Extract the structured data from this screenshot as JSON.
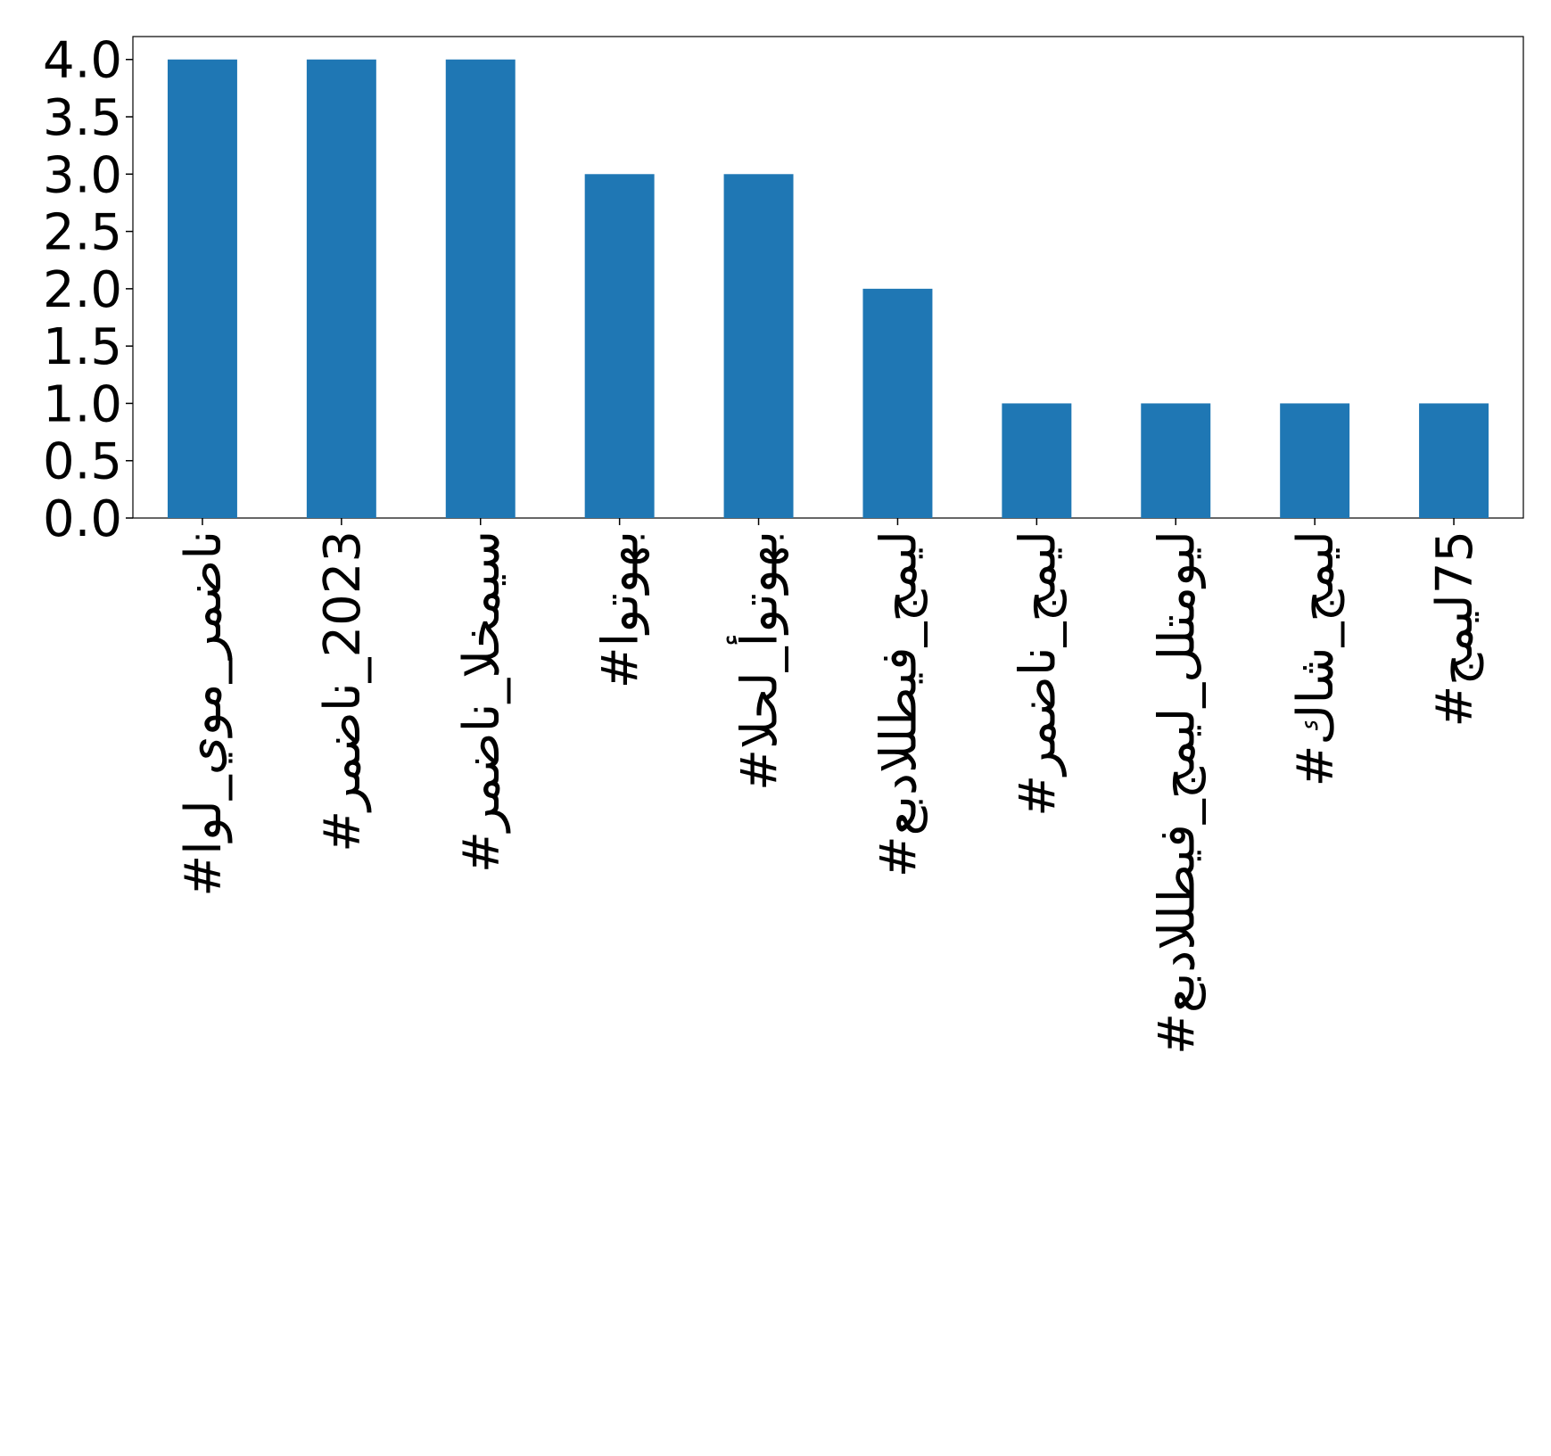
{
  "chart_data": {
    "type": "bar",
    "categories": [
      "#اول_يوم_رمضان",
      "#رمضان_2023",
      "#رمضان_الخميس",
      "#اوتوهب",
      "#الحل_أوتوهب",
      "#عبداللطيف_جميل",
      "#رمضان_جميل",
      "#عبداللطيف_جميل_للتمويل",
      "#كاش_جميل",
      "#جميل75"
    ],
    "values": [
      4,
      4,
      4,
      3,
      3,
      2,
      1,
      1,
      1,
      1
    ],
    "color": "#1f77b4",
    "ylim": [
      0,
      4.2
    ],
    "yticks": [
      {
        "value": 0,
        "label": "0.0"
      },
      {
        "value": 0.5,
        "label": "0.5"
      },
      {
        "value": 1,
        "label": "1.0"
      },
      {
        "value": 1.5,
        "label": "1.5"
      },
      {
        "value": 2,
        "label": "2.0"
      },
      {
        "value": 2.5,
        "label": "2.5"
      },
      {
        "value": 3,
        "label": "3.0"
      },
      {
        "value": 3.5,
        "label": "3.5"
      },
      {
        "value": 4,
        "label": "4.0"
      }
    ],
    "grid": false
  }
}
